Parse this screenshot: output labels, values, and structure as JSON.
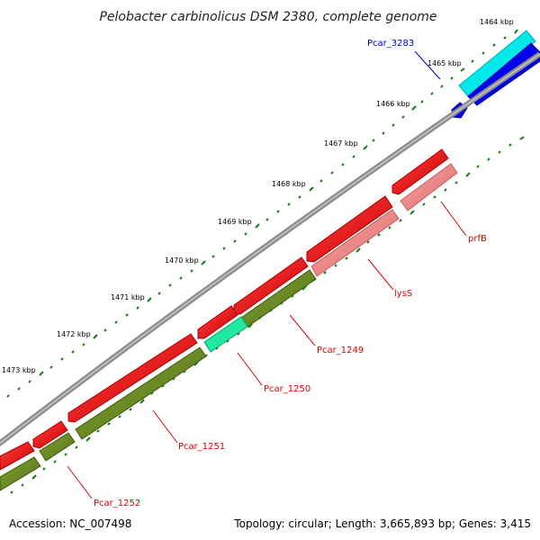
{
  "title": "Pelobacter carbinolicus DSM 2380, complete genome",
  "footer": {
    "accession": "Accession: NC_007498",
    "summary": "Topology: circular; Length: 3,665,893 bp; Genes: 3,415"
  },
  "ticks": {
    "major": [
      {
        "label": "1464 kbp"
      },
      {
        "label": "1465 kbp"
      },
      {
        "label": "1466 kbp"
      },
      {
        "label": "1467 kbp"
      },
      {
        "label": "1468 kbp"
      },
      {
        "label": "1469 kbp"
      },
      {
        "label": "1470 kbp"
      },
      {
        "label": "1471 kbp"
      },
      {
        "label": "1472 kbp"
      },
      {
        "label": "1473 kbp"
      }
    ]
  },
  "labels": {
    "pcar_3283": "Pcar_3283",
    "prfB": "prfB",
    "lysS": "lysS",
    "pcar_1249": "Pcar_1249",
    "pcar_1250": "Pcar_1250",
    "pcar_1251": "Pcar_1251",
    "pcar_1252": "Pcar_1252"
  },
  "colors": {
    "backbone": "#808080",
    "forward_cds": "#ff0000",
    "reverse_cds_pink": "#f08080",
    "reverse_cds_olive": "#6b8e23",
    "rna_cyan": "#00ffff",
    "rna_teal": "#20e8a0",
    "plus_strand_blue": "#0000ff",
    "label_red": "#dd0000",
    "label_blue": "#0000cc",
    "tick_green": "#1a7a1a"
  }
}
